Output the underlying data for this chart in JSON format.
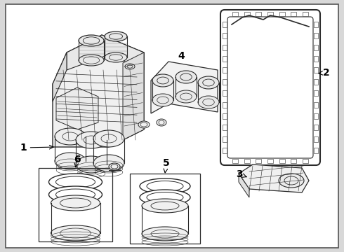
{
  "background_color": "#d8d8d8",
  "border_color": "#000000",
  "line_color": "#2a2a2a",
  "label_color": "#000000",
  "fig_width": 4.9,
  "fig_height": 3.6,
  "dpi": 100
}
